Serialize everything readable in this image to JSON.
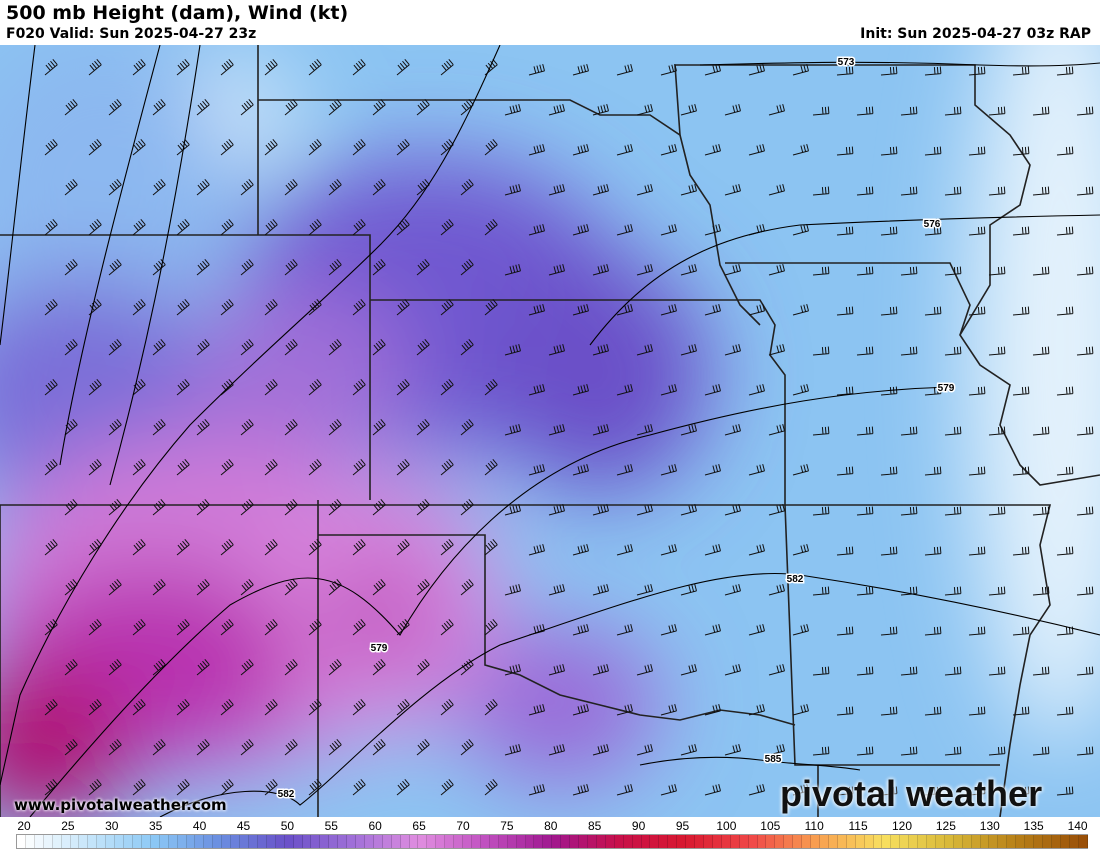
{
  "header": {
    "title": "500 mb Height (dam), Wind (kt)",
    "valid": "F020 Valid: Sun 2025-04-27 23z",
    "init": "Init: Sun 2025-04-27 03z RAP"
  },
  "contour_labels": [
    "573",
    "576",
    "579",
    "579",
    "582",
    "582",
    "585"
  ],
  "footer": {
    "website": "www.pivotalweather.com",
    "logo": "pivotal weather"
  },
  "colorbar": {
    "ticks": [
      "20",
      "25",
      "30",
      "35",
      "40",
      "45",
      "50",
      "55",
      "60",
      "65",
      "70",
      "75",
      "80",
      "85",
      "90",
      "95",
      "100",
      "105",
      "110",
      "115",
      "120",
      "125",
      "130",
      "135",
      "140"
    ],
    "stops": [
      "#ffffff",
      "#c8e6fa",
      "#8cc8f5",
      "#6a8ee0",
      "#6a50c8",
      "#a070d8",
      "#e08ee0",
      "#c050c0",
      "#a01890",
      "#c8104a",
      "#d81830",
      "#f04848",
      "#f8a050",
      "#f8e060",
      "#d8b838",
      "#b88018",
      "#9a5008"
    ]
  },
  "map_colors": {
    "light": "#d8ecfb",
    "blue": "#8cc4f2",
    "purple": "#7158d2",
    "violet": "#a87ce0",
    "pink": "#d884dc",
    "magenta": "#b8169a"
  }
}
